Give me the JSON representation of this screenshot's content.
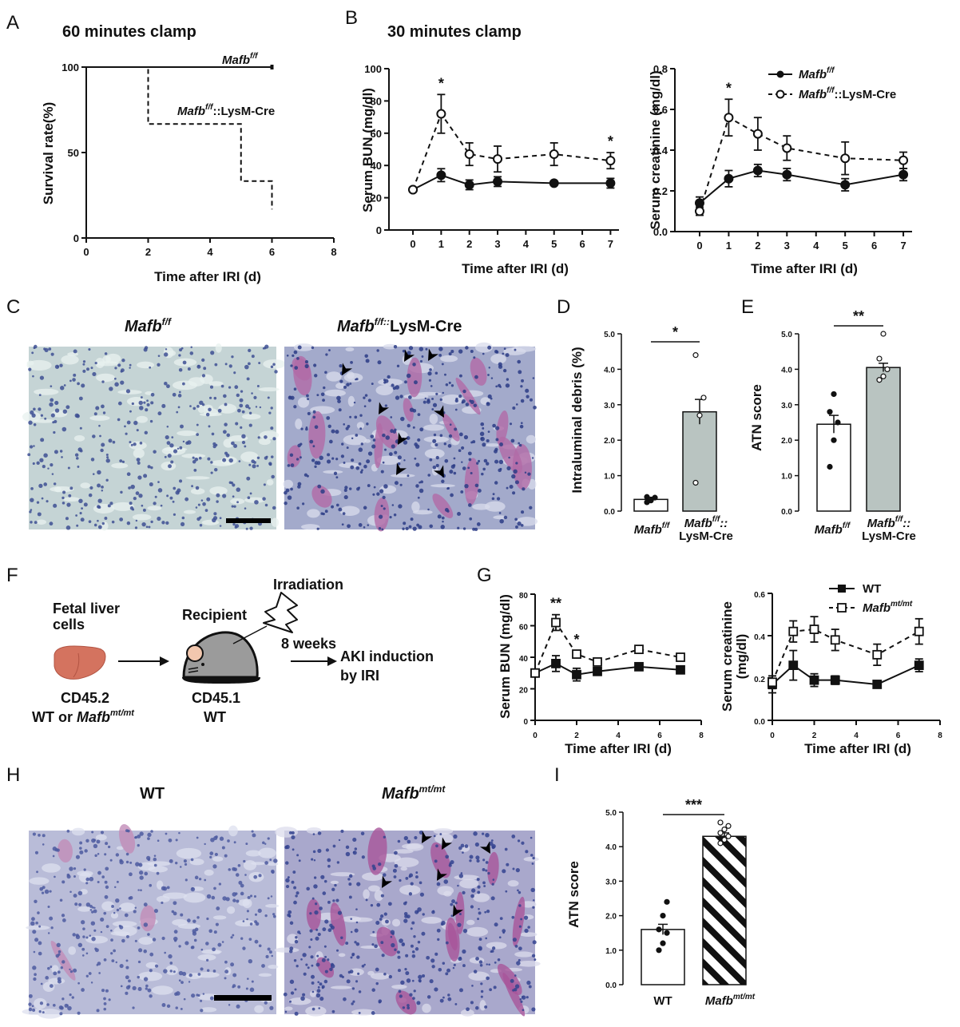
{
  "panels": {
    "A": {
      "letter": "A",
      "title": "60 minutes clamp",
      "ylabel": "Survival rate(%)",
      "xlabel": "Time after IRI (d)",
      "legend_f": "Mafb",
      "legend_f_sup": "f/f",
      "legend_cre": "Mafb",
      "legend_cre_sup": "f/f",
      "legend_cre_tail": "::LysM-Cre"
    },
    "B": {
      "letter": "B",
      "title": "30 minutes clamp",
      "xlabel": "Time after IRI (d)",
      "ylabel_bun": "Serum BUN (mg/dl)",
      "ylabel_cre": "Serum creatinine (mg/dl)",
      "legend1": "Mafb",
      "legend1_sup": "f/f",
      "legend2": "Mafb",
      "legend2_sup": "f/f",
      "legend2_tail": "::LysM-Cre"
    },
    "C": {
      "letter": "C",
      "label_left": "Mafb",
      "label_left_sup": "f/f",
      "label_right": "Mafb",
      "label_right_sup": "f/f::",
      "label_right_tail": "LysM-Cre"
    },
    "D": {
      "letter": "D",
      "ylabel": "Intraluminal debris (%)",
      "cat1": "Mafb",
      "cat1_sup": "f/f",
      "cat2a": "Mafb",
      "cat2a_sup": "f/f",
      "cat2a_tail": "::",
      "cat2b": "LysM-Cre",
      "sig": "*"
    },
    "E": {
      "letter": "E",
      "ylabel": "ATN score",
      "cat1": "Mafb",
      "cat1_sup": "f/f",
      "cat2a": "Mafb",
      "cat2a_sup": "f/f",
      "cat2a_tail": "::",
      "cat2b": "LysM-Cre",
      "sig": "**"
    },
    "F": {
      "letter": "F",
      "donor_l1": "Fetal liver",
      "donor_l2": "cells",
      "recipient": "Recipient",
      "irradiation": "Irradiation",
      "weeks": "8 weeks",
      "aki_l1": "AKI induction",
      "aki_l2": "by IRI",
      "cd452": "CD45.2",
      "wt_or": "WT or ",
      "mafb": "Mafb",
      "mafb_sup": "mt/mt",
      "cd451": "CD45.1",
      "wt": "WT"
    },
    "G": {
      "letter": "G",
      "xlabel": "Time after IRI (d)",
      "ylabel_bun": "Serum BUN (mg/dl)",
      "ylabel_cre1": "Serum creatinine",
      "ylabel_cre2": "(mg/dl)",
      "legend1": "WT",
      "legend2": "Mafb",
      "legend2_sup": "mt/mt"
    },
    "H": {
      "letter": "H",
      "label_left": "WT",
      "label_right": "Mafb",
      "label_right_sup": "mt/mt"
    },
    "I": {
      "letter": "I",
      "ylabel": "ATN score",
      "cat1": "WT",
      "cat2": "Mafb",
      "cat2_sup": "mt/mt",
      "sig": "***"
    }
  },
  "chart_data": [
    {
      "id": "A",
      "type": "line",
      "title": "60 minutes clamp",
      "xlabel": "Time after IRI (d)",
      "ylabel": "Survival rate(%)",
      "xlim": [
        0,
        8
      ],
      "ylim": [
        0,
        100
      ],
      "xticks": [
        0,
        2,
        4,
        6,
        8
      ],
      "yticks": [
        0,
        50,
        100
      ],
      "series": [
        {
          "name": "Mafb f/f",
          "style": "solid",
          "x": [
            0,
            6
          ],
          "y": [
            100,
            100
          ]
        },
        {
          "name": "Mafb f/f::LysM-Cre",
          "style": "dashed-step",
          "x": [
            0,
            2,
            2,
            5,
            5,
            6,
            6
          ],
          "y": [
            100,
            100,
            66.7,
            66.7,
            33.3,
            33.3,
            16.7
          ]
        }
      ]
    },
    {
      "id": "B-BUN",
      "type": "line",
      "xlabel": "Time after IRI (d)",
      "ylabel": "Serum BUN (mg/dl)",
      "xlim": [
        0,
        7
      ],
      "ylim": [
        0,
        100
      ],
      "xticks": [
        0,
        1,
        2,
        3,
        4,
        5,
        6,
        7
      ],
      "yticks": [
        0,
        20,
        40,
        60,
        80,
        100
      ],
      "x": [
        0,
        1,
        2,
        3,
        5,
        7
      ],
      "series": [
        {
          "name": "Mafb f/f",
          "marker": "filled-circle",
          "values": [
            25,
            34,
            28,
            30,
            29,
            29
          ],
          "err": [
            1,
            4,
            3,
            3,
            1,
            3
          ]
        },
        {
          "name": "Mafb f/f::LysM-Cre",
          "marker": "open-circle",
          "style": "dashed",
          "values": [
            25,
            72,
            47,
            44,
            47,
            43
          ],
          "err": [
            1,
            12,
            7,
            8,
            7,
            5
          ]
        }
      ],
      "annotations": [
        {
          "x": 1,
          "text": "*"
        },
        {
          "x": 7,
          "text": "*"
        }
      ]
    },
    {
      "id": "B-Creatinine",
      "type": "line",
      "xlabel": "Time after IRI (d)",
      "ylabel": "Serum creatinine (mg/dl)",
      "xlim": [
        0,
        7
      ],
      "ylim": [
        0,
        0.8
      ],
      "xticks": [
        0,
        1,
        2,
        3,
        4,
        5,
        6,
        7
      ],
      "yticks": [
        0.0,
        0.2,
        0.4,
        0.6,
        0.8
      ],
      "x": [
        0,
        1,
        2,
        3,
        5,
        7
      ],
      "series": [
        {
          "name": "Mafb f/f",
          "marker": "filled-circle",
          "values": [
            0.14,
            0.26,
            0.3,
            0.28,
            0.23,
            0.28
          ],
          "err": [
            0.03,
            0.04,
            0.03,
            0.03,
            0.03,
            0.03
          ]
        },
        {
          "name": "Mafb f/f::LysM-Cre",
          "marker": "open-circle",
          "style": "dashed",
          "values": [
            0.1,
            0.56,
            0.48,
            0.41,
            0.36,
            0.35
          ],
          "err": [
            0.02,
            0.09,
            0.08,
            0.06,
            0.08,
            0.04
          ]
        }
      ],
      "annotations": [
        {
          "x": 1,
          "text": "*"
        }
      ]
    },
    {
      "id": "D",
      "type": "bar",
      "ylabel": "Intraluminal debris (%)",
      "ylim": [
        0,
        5
      ],
      "yticks": [
        "0.0",
        "1.0",
        "2.0",
        "3.0",
        "4.0",
        "5.0"
      ],
      "categories": [
        "Mafb f/f",
        "Mafb f/f::LysM-Cre"
      ],
      "values": [
        0.33,
        2.8
      ],
      "err": [
        0.06,
        0.35
      ],
      "points": [
        [
          0.25,
          0.3,
          0.38,
          0.4
        ],
        [
          0.8,
          2.7,
          3.2,
          4.4
        ]
      ],
      "significance": "*"
    },
    {
      "id": "E",
      "type": "bar",
      "ylabel": "ATN score",
      "ylim": [
        0,
        5
      ],
      "yticks": [
        "0.0",
        "1.0",
        "2.0",
        "3.0",
        "4.0",
        "5.0"
      ],
      "categories": [
        "Mafb f/f",
        "Mafb f/f::LysM-Cre"
      ],
      "values": [
        2.45,
        4.05
      ],
      "err": [
        0.25,
        0.12
      ],
      "points": [
        [
          1.25,
          2.0,
          2.5,
          2.8,
          3.3
        ],
        [
          3.7,
          3.8,
          4.0,
          4.3,
          5.0
        ]
      ],
      "significance": "**"
    },
    {
      "id": "G-BUN",
      "type": "line",
      "xlabel": "Time after IRI (d)",
      "ylabel": "Serum BUN (mg/dl)",
      "xlim": [
        0,
        8
      ],
      "ylim": [
        0,
        80
      ],
      "xticks": [
        0,
        2,
        4,
        6,
        8
      ],
      "yticks": [
        0,
        20,
        40,
        60,
        80
      ],
      "x": [
        0,
        1,
        2,
        3,
        5,
        7
      ],
      "series": [
        {
          "name": "WT",
          "marker": "filled-square",
          "values": [
            30,
            36,
            29,
            31,
            34,
            32
          ],
          "err": [
            1,
            5,
            4,
            2,
            2,
            1
          ]
        },
        {
          "name": "Mafb mt/mt",
          "marker": "open-square",
          "style": "dashed",
          "values": [
            30,
            62,
            42,
            37,
            45,
            40
          ],
          "err": [
            1,
            5,
            2,
            2,
            2,
            1
          ]
        }
      ],
      "annotations": [
        {
          "x": 1,
          "text": "**"
        },
        {
          "x": 2,
          "text": "*"
        }
      ]
    },
    {
      "id": "G-Creatinine",
      "type": "line",
      "xlabel": "Time after IRI (d)",
      "ylabel": "Serum creatinine (mg/dl)",
      "xlim": [
        0,
        8
      ],
      "ylim": [
        0,
        0.6
      ],
      "xticks": [
        0,
        2,
        4,
        6,
        8
      ],
      "yticks": [
        0.0,
        0.2,
        0.4,
        0.6
      ],
      "x": [
        0,
        1,
        2,
        3,
        5,
        7
      ],
      "series": [
        {
          "name": "WT",
          "marker": "filled-square",
          "values": [
            0.17,
            0.26,
            0.19,
            0.19,
            0.17,
            0.26
          ],
          "err": [
            0.04,
            0.07,
            0.03,
            0.02,
            0.01,
            0.03
          ]
        },
        {
          "name": "Mafb mt/mt",
          "marker": "open-square",
          "style": "dashed",
          "values": [
            0.18,
            0.42,
            0.43,
            0.38,
            0.31,
            0.42
          ],
          "err": [
            0.03,
            0.05,
            0.06,
            0.05,
            0.05,
            0.06
          ]
        }
      ]
    },
    {
      "id": "I",
      "type": "bar",
      "ylabel": "ATN score",
      "ylim": [
        0,
        5
      ],
      "yticks": [
        "0.0",
        "1.0",
        "2.0",
        "3.0",
        "4.0",
        "5.0"
      ],
      "categories": [
        "WT",
        "Mafb mt/mt"
      ],
      "values": [
        1.6,
        4.3
      ],
      "err": [
        0.15,
        0.1
      ],
      "points": [
        [
          1.0,
          1.2,
          1.5,
          1.6,
          2.0,
          2.4
        ],
        [
          4.1,
          4.2,
          4.3,
          4.4,
          4.5,
          4.6,
          4.7
        ]
      ],
      "significance": "***"
    }
  ],
  "colors": {
    "ink": "#111111",
    "bar_white": "#ffffff",
    "bar_grey": "#b9c4c1",
    "histo_blue": "#5a6ea8",
    "histo_pink": "#b5679e"
  }
}
